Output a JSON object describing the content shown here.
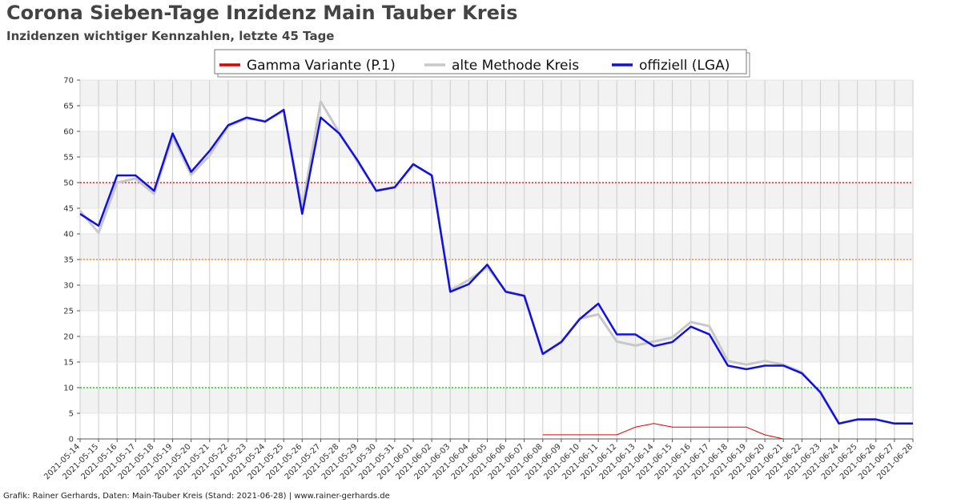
{
  "header": {
    "title": "Corona Sieben-Tage Inzidenz Main Tauber Kreis",
    "subtitle": "Inzidenzen wichtiger Kennzahlen, letzte 45 Tage"
  },
  "footer": {
    "credit": "Grafik: Rainer Gerhards, Daten: Main-Tauber Kreis (Stand: 2021-06-28) | www.rainer-gerhards.de"
  },
  "colors": {
    "gamma": "#e00000",
    "alt": "#c8c8c8",
    "official": "#1010e0",
    "threshold_50": "#d00000",
    "threshold_35": "#e08000",
    "threshold_10": "#00c000",
    "band": "#f2f2f2",
    "grid": "#cccccc"
  },
  "chart_data": {
    "type": "line",
    "ylim": [
      0,
      70
    ],
    "yticks": [
      0,
      5,
      10,
      15,
      20,
      25,
      30,
      35,
      40,
      45,
      50,
      55,
      60,
      65,
      70
    ],
    "grid": true,
    "legend_position": "top",
    "x": [
      "2021-05-14",
      "2021-05-15",
      "2021-05-16",
      "2021-05-17",
      "2021-05-18",
      "2021-05-19",
      "2021-05-20",
      "2021-05-21",
      "2021-05-22",
      "2021-05-23",
      "2021-05-24",
      "2021-05-25",
      "2021-05-26",
      "2021-05-27",
      "2021-05-28",
      "2021-05-29",
      "2021-05-30",
      "2021-05-31",
      "2021-06-01",
      "2021-06-02",
      "2021-06-03",
      "2021-06-04",
      "2021-06-05",
      "2021-06-06",
      "2021-06-07",
      "2021-06-08",
      "2021-06-09",
      "2021-06-10",
      "2021-06-11",
      "2021-06-12",
      "2021-06-13",
      "2021-06-14",
      "2021-06-15",
      "2021-06-16",
      "2021-06-17",
      "2021-06-18",
      "2021-06-19",
      "2021-06-20",
      "2021-06-21",
      "2021-06-22",
      "2021-06-23",
      "2021-06-24",
      "2021-06-25",
      "2021-06-26",
      "2021-06-27",
      "2021-06-28"
    ],
    "thresholds": [
      50,
      35,
      10
    ],
    "series": [
      {
        "name": "Gamma Variante (P.1)",
        "values": [
          null,
          null,
          null,
          null,
          null,
          null,
          null,
          null,
          null,
          null,
          null,
          null,
          null,
          null,
          null,
          null,
          null,
          null,
          null,
          null,
          null,
          null,
          null,
          null,
          null,
          0.8,
          0.8,
          0.8,
          0.8,
          0.8,
          2.3,
          3.0,
          2.3,
          2.3,
          2.3,
          2.3,
          2.3,
          0.8,
          0.0,
          null,
          null,
          null,
          null,
          null,
          null,
          null
        ]
      },
      {
        "name": "alte Methode Kreis",
        "values": [
          44.5,
          40.2,
          50.0,
          50.8,
          47.8,
          59.0,
          51.5,
          55.3,
          61.0,
          62.5,
          62.0,
          64.0,
          45.0,
          65.8,
          59.8,
          54.0,
          48.5,
          49.0,
          53.5,
          51.5,
          29.0,
          31.0,
          33.5,
          28.8,
          28.0,
          16.5,
          19.0,
          23.5,
          24.3,
          19.0,
          18.2,
          19.0,
          19.8,
          22.8,
          22.0,
          15.2,
          14.5,
          15.2,
          14.5,
          13.0,
          9.0,
          3.0,
          3.8,
          3.8,
          3.0,
          3.0
        ]
      },
      {
        "name": "offiziell (LGA)",
        "values": [
          43.9,
          41.6,
          51.4,
          51.4,
          48.4,
          59.6,
          52.1,
          56.2,
          61.2,
          62.7,
          61.9,
          64.2,
          43.9,
          62.7,
          59.6,
          54.3,
          48.4,
          49.1,
          53.6,
          51.4,
          28.7,
          30.2,
          34.0,
          28.7,
          27.9,
          16.6,
          18.9,
          23.4,
          26.4,
          20.4,
          20.4,
          18.1,
          18.9,
          21.9,
          20.4,
          14.3,
          13.6,
          14.3,
          14.3,
          12.8,
          9.1,
          3.0,
          3.8,
          3.8,
          3.0,
          3.0
        ]
      }
    ]
  }
}
